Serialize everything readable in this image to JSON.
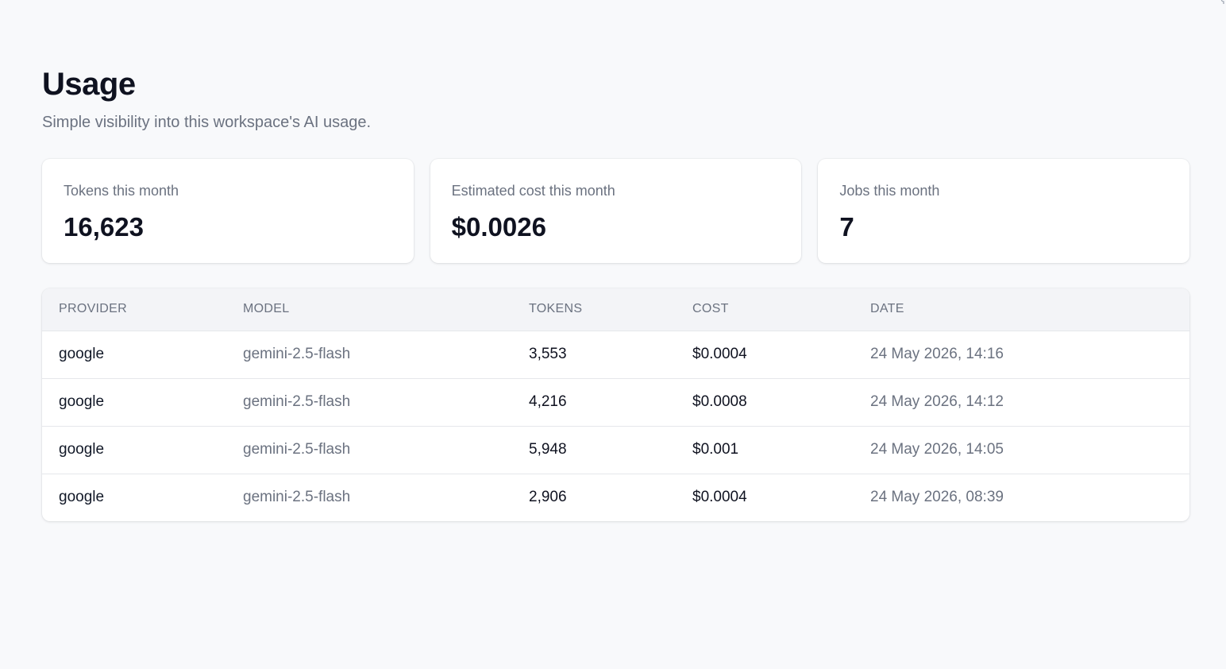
{
  "page": {
    "title": "Usage",
    "subtitle": "Simple visibility into this workspace's AI usage."
  },
  "stats": [
    {
      "label": "Tokens this month",
      "value": "16,623"
    },
    {
      "label": "Estimated cost this month",
      "value": "$0.0026"
    },
    {
      "label": "Jobs this month",
      "value": "7"
    }
  ],
  "table": {
    "headers": {
      "provider": "PROVIDER",
      "model": "MODEL",
      "tokens": "TOKENS",
      "cost": "COST",
      "date": "DATE"
    },
    "rows": [
      {
        "provider": "google",
        "model": "gemini-2.5-flash",
        "tokens": "3,553",
        "cost": "$0.0004",
        "date": "24 May 2026, 14:16"
      },
      {
        "provider": "google",
        "model": "gemini-2.5-flash",
        "tokens": "4,216",
        "cost": "$0.0008",
        "date": "24 May 2026, 14:12"
      },
      {
        "provider": "google",
        "model": "gemini-2.5-flash",
        "tokens": "5,948",
        "cost": "$0.001",
        "date": "24 May 2026, 14:05"
      },
      {
        "provider": "google",
        "model": "gemini-2.5-flash",
        "tokens": "2,906",
        "cost": "$0.0004",
        "date": "24 May 2026, 08:39"
      }
    ]
  },
  "colors": {
    "background": "#f8f9fb",
    "text_primary": "#0f1220",
    "text_muted": "#6b7280",
    "table_header_bg": "#f3f4f7",
    "border": "#e5e7eb"
  }
}
